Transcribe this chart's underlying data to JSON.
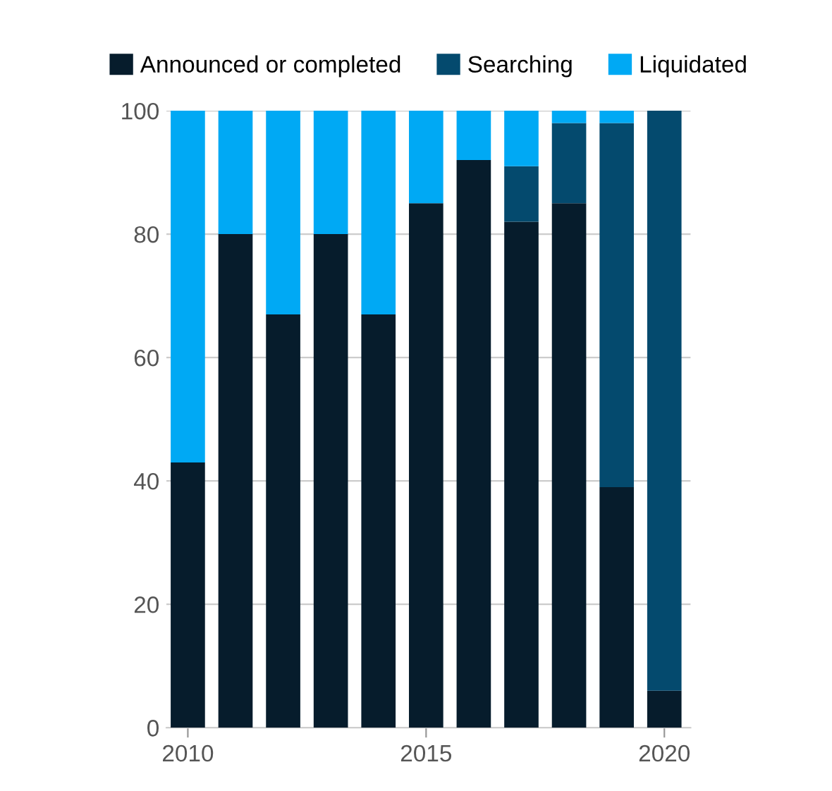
{
  "chart_data": {
    "type": "bar",
    "stacked": true,
    "x": [
      2010,
      2011,
      2012,
      2013,
      2014,
      2015,
      2016,
      2017,
      2018,
      2019,
      2020
    ],
    "series": [
      {
        "name": "Announced or completed",
        "color": "#061c2c",
        "values": [
          43,
          80,
          67,
          80,
          67,
          85,
          92,
          82,
          85,
          39,
          6
        ]
      },
      {
        "name": "Searching",
        "color": "#044a6e",
        "values": [
          0,
          0,
          0,
          0,
          0,
          0,
          0,
          9,
          13,
          59,
          94
        ]
      },
      {
        "name": "Liquidated",
        "color": "#00a9f4",
        "values": [
          57,
          20,
          33,
          20,
          33,
          15,
          8,
          9,
          2,
          2,
          0
        ]
      }
    ],
    "xlim": [
      2009.55,
      2020.55
    ],
    "xticks": [
      2010,
      2015,
      2020
    ],
    "ylim": [
      0,
      100
    ],
    "yticks": [
      0,
      20,
      40,
      60,
      80,
      100
    ],
    "grid": "y",
    "legend": "top"
  }
}
